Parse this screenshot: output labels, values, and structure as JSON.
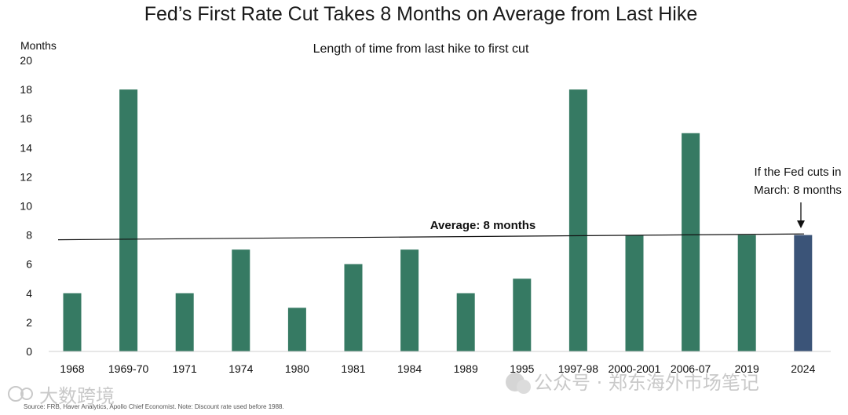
{
  "chart_data": {
    "type": "bar",
    "title": "Fed’s First Rate Cut Takes 8 Months on Average from Last Hike",
    "subtitle": "Length of time from last hike to first cut",
    "ylabel": "Months",
    "xlabel": "",
    "ylim": [
      0,
      20
    ],
    "yticks": [
      "0",
      "2",
      "4",
      "6",
      "8",
      "10",
      "12",
      "14",
      "16",
      "18",
      "20"
    ],
    "categories": [
      "1968",
      "1969-70",
      "1971",
      "1974",
      "1980",
      "1981",
      "1984",
      "1989",
      "1995",
      "1997-98",
      "2000-2001",
      "2006-07",
      "2019",
      "2024"
    ],
    "values": [
      4,
      18,
      4,
      7,
      3,
      6,
      7,
      4,
      5,
      18,
      8,
      15,
      8,
      8
    ],
    "bar_colors": [
      "#367a63",
      "#367a63",
      "#367a63",
      "#367a63",
      "#367a63",
      "#367a63",
      "#367a63",
      "#367a63",
      "#367a63",
      "#367a63",
      "#367a63",
      "#367a63",
      "#367a63",
      "#3b5478"
    ],
    "average": {
      "label": "Average: 8 months",
      "value": 8
    },
    "annotation": {
      "line1": "If the Fed cuts in",
      "line2": "March: 8 months"
    },
    "source": "Source: FRB, Haver Analytics, Apollo Chief Economist. Note: Discount rate used before 1988.",
    "grid": false,
    "legend": "none"
  },
  "watermarks": {
    "left": "大数跨境",
    "right": "公众号 · 郑东海外市场笔记"
  },
  "colors": {
    "bar": "#367a63",
    "highlight": "#3b5478",
    "axis": "#cfcfcf"
  }
}
